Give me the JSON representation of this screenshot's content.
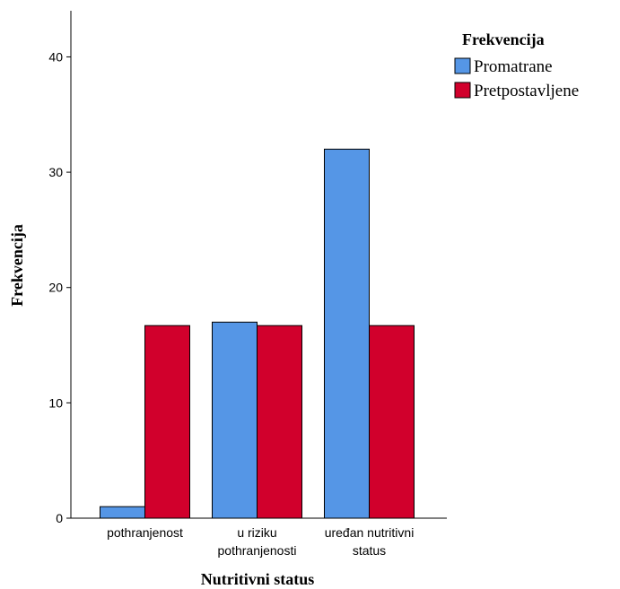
{
  "chart_data": {
    "type": "bar",
    "xlabel": "Nutritivni status",
    "ylabel": "Frekvencija",
    "ylim": [
      0,
      44
    ],
    "yticks": [
      0,
      10,
      20,
      30,
      40
    ],
    "grid": false,
    "legend": {
      "title": "Frekvencija",
      "position": "top-right"
    },
    "categories": [
      [
        "pothranjenost"
      ],
      [
        "u riziku",
        "pothranjenosti"
      ],
      [
        "uređan nutritivni",
        "status"
      ]
    ],
    "series": [
      {
        "name": "Promatrane",
        "color": "#5596e6",
        "values": [
          1,
          17,
          32
        ]
      },
      {
        "name": "Pretpostavljene",
        "color": "#d1002c",
        "values": [
          16.7,
          16.7,
          16.7
        ]
      }
    ]
  }
}
